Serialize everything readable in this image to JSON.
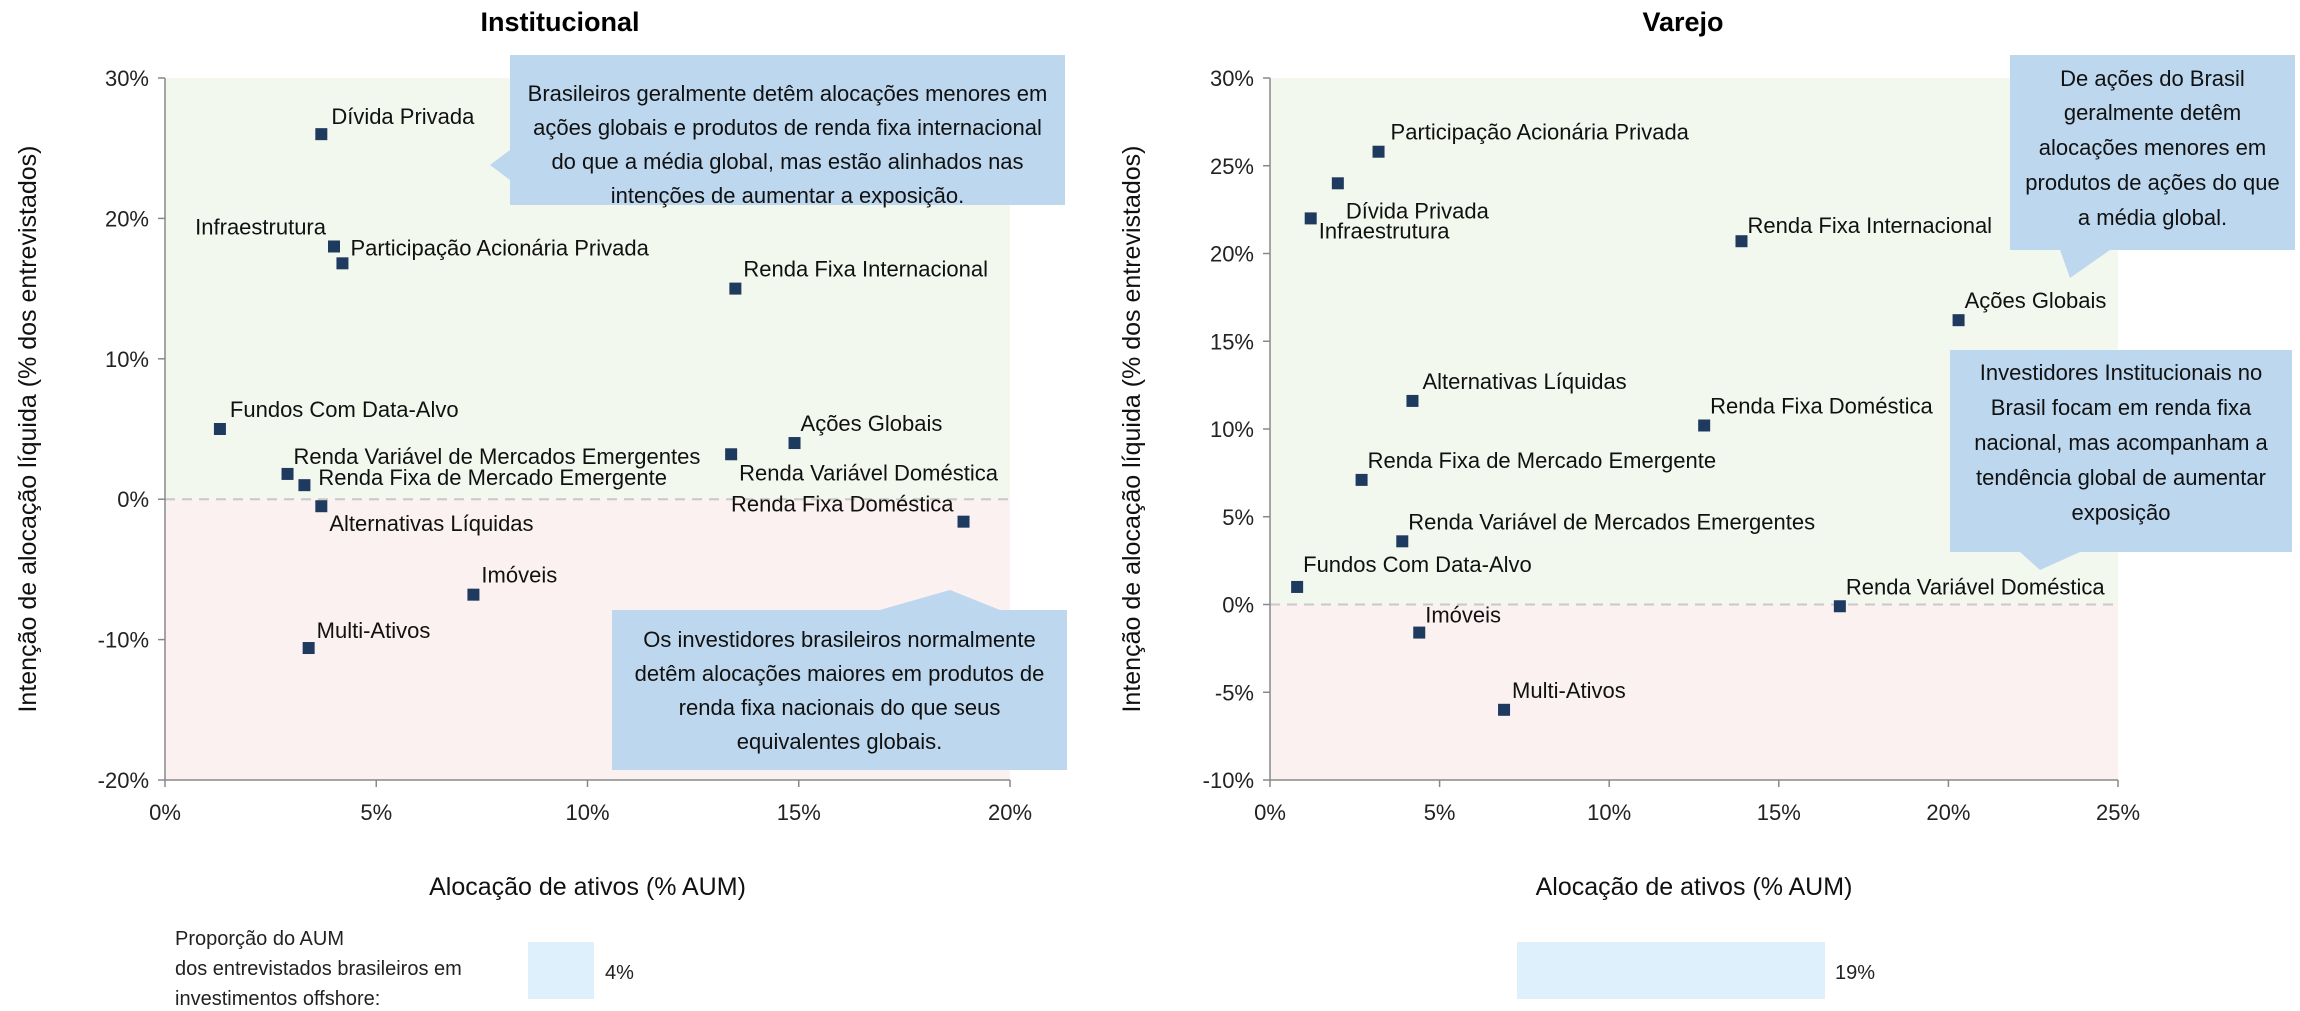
{
  "chart_data": [
    {
      "type": "scatter",
      "title": "Institucional",
      "xlabel": "Alocação de ativos (% AUM)",
      "ylabel": "Intenção de alocação líquida (% dos entrevistados)",
      "xlim": [
        0,
        20
      ],
      "ylim": [
        -20,
        30
      ],
      "x_ticks": [
        "0%",
        "5%",
        "10%",
        "15%",
        "20%"
      ],
      "y_ticks": [
        "-20%",
        "-10%",
        "0%",
        "10%",
        "20%",
        "30%"
      ],
      "grid": false,
      "background_bands": {
        "positive": "#f3f8ee",
        "negative": "#fbf1f1"
      },
      "marker_color": "#1f3a5f",
      "points": [
        {
          "label": "Dívida Privada",
          "x": 3.7,
          "y": 26
        },
        {
          "label": "Infraestrutura",
          "x": 4.0,
          "y": 18
        },
        {
          "label": "Participação Acionária Privada",
          "x": 4.2,
          "y": 16.8
        },
        {
          "label": "Renda Fixa Internacional",
          "x": 13.5,
          "y": 15
        },
        {
          "label": "Fundos Com Data-Alvo",
          "x": 1.3,
          "y": 5
        },
        {
          "label": "Ações Globais",
          "x": 14.9,
          "y": 4
        },
        {
          "label": "Renda Variável Doméstica",
          "x": 13.4,
          "y": 3.2
        },
        {
          "label": "Renda Variável de Mercados Emergentes",
          "x": 2.9,
          "y": 1.8
        },
        {
          "label": "Renda Fixa de Mercado Emergente",
          "x": 3.3,
          "y": 1
        },
        {
          "label": "Alternativas Líquidas",
          "x": 3.7,
          "y": -0.5
        },
        {
          "label": "Renda Fixa Doméstica",
          "x": 18.9,
          "y": -1.6
        },
        {
          "label": "Imóveis",
          "x": 7.3,
          "y": -6.8
        },
        {
          "label": "Multi-Ativos",
          "x": 3.4,
          "y": -10.6
        }
      ],
      "callouts": [
        "Brasileiros geralmente detêm alocações menores em ações globais e produtos de renda fixa internacional do que a média global, mas estão alinhados nas intenções de aumentar a exposição.",
        "Os investidores brasileiros normalmente detêm alocações maiores em produtos de renda fixa nacionais do que seus equivalentes globais."
      ],
      "offshore_share": {
        "label": "Proporção do AUM dos entrevistados brasileiros em investimentos offshore:",
        "value": 4,
        "value_text": "4%"
      }
    },
    {
      "type": "scatter",
      "title": "Varejo",
      "xlabel": "Alocação de ativos (% AUM)",
      "ylabel": "Intenção de alocação líquida (% dos entrevistados)",
      "xlim": [
        0,
        25
      ],
      "ylim": [
        -10,
        30
      ],
      "x_ticks": [
        "0%",
        "5%",
        "10%",
        "15%",
        "20%",
        "25%"
      ],
      "y_ticks": [
        "-10%",
        "-5%",
        "0%",
        "5%",
        "10%",
        "15%",
        "20%",
        "25%",
        "30%"
      ],
      "grid": false,
      "background_bands": {
        "positive": "#f3f8ee",
        "negative": "#fbf1f1"
      },
      "marker_color": "#1f3a5f",
      "points": [
        {
          "label": "Participação Acionária Privada",
          "x": 3.2,
          "y": 25.8
        },
        {
          "label": "Dívida Privada",
          "x": 2.0,
          "y": 24
        },
        {
          "label": "Infraestrutura",
          "x": 1.2,
          "y": 22
        },
        {
          "label": "Renda Fixa Internacional",
          "x": 13.9,
          "y": 20.7
        },
        {
          "label": "Ações Globais",
          "x": 20.3,
          "y": 16.2
        },
        {
          "label": "Alternativas Líquidas",
          "x": 4.2,
          "y": 11.6
        },
        {
          "label": "Renda Fixa Doméstica",
          "x": 12.8,
          "y": 10.2
        },
        {
          "label": "Renda Fixa de Mercado Emergente",
          "x": 2.7,
          "y": 7.1
        },
        {
          "label": "Renda Variável de Mercados Emergentes",
          "x": 3.9,
          "y": 3.6
        },
        {
          "label": "Fundos Com Data-Alvo",
          "x": 0.8,
          "y": 1
        },
        {
          "label": "Renda Variável Doméstica",
          "x": 16.8,
          "y": -0.1
        },
        {
          "label": "Imóveis",
          "x": 4.4,
          "y": -1.6
        },
        {
          "label": "Multi-Ativos",
          "x": 6.9,
          "y": -6
        }
      ],
      "callouts": [
        "De ações do Brasil geralmente detêm alocações menores em produtos de ações do que a média global.",
        "Investidores Institucionais no Brasil focam em renda fixa nacional, mas acompanham a tendência global de aumentar exposição"
      ],
      "offshore_share": {
        "value": 19,
        "value_text": "19%"
      }
    }
  ]
}
